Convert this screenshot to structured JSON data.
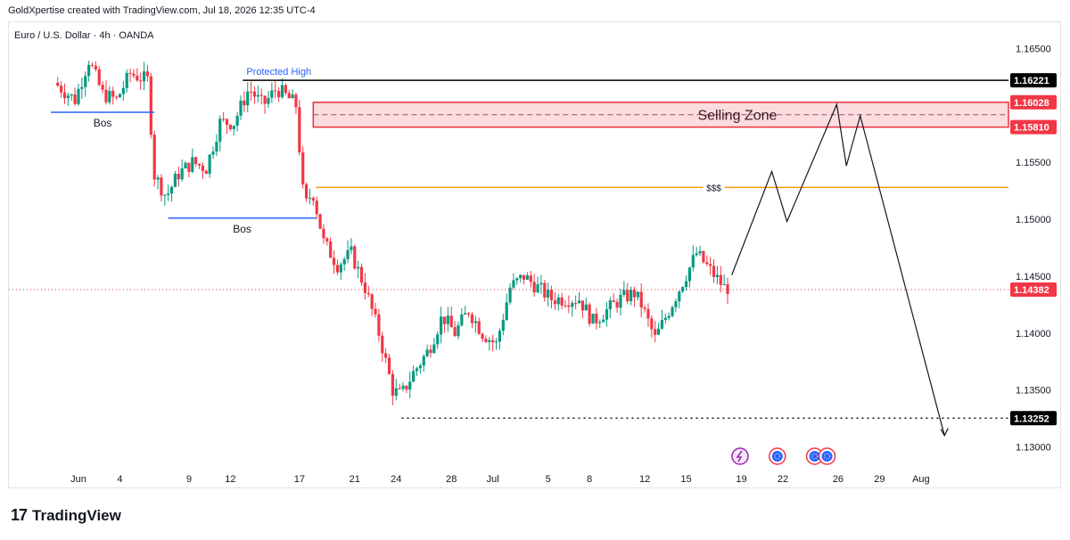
{
  "header": {
    "credit": "GoldXpertise created with TradingView.com, Jul 18, 2026 12:35 UTC-4"
  },
  "symbol_info": "Euro / U.S. Dollar · 4h · OANDA",
  "footer": {
    "logo_mark": "17",
    "logo_text": "TradingView"
  },
  "colors": {
    "up": "#089981",
    "down": "#f23645",
    "black_line": "#000000",
    "blue_line": "#2962ff",
    "orange_line": "#ff9800",
    "zone_fill": "#f9d0d4",
    "zone_border": "#e8323f",
    "current_price_line": "#f23645",
    "event_purple": "#9c27b0",
    "event_blue": "#2962ff"
  },
  "chart_data": {
    "type": "candlestick",
    "ylim": [
      1.128,
      1.167
    ],
    "y_ticks": [
      "1.16500",
      "1.15500",
      "1.15000",
      "1.14500",
      "1.14000",
      "1.13500",
      "1.13000"
    ],
    "x_ticks": [
      {
        "label": "Jun",
        "day": 1
      },
      {
        "label": "4",
        "day": 4
      },
      {
        "label": "9",
        "day": 9
      },
      {
        "label": "12",
        "day": 12
      },
      {
        "label": "17",
        "day": 17
      },
      {
        "label": "21",
        "day": 21
      },
      {
        "label": "24",
        "day": 24
      },
      {
        "label": "28",
        "day": 28
      },
      {
        "label": "Jul",
        "day": 31
      },
      {
        "label": "5",
        "day": 35
      },
      {
        "label": "8",
        "day": 38
      },
      {
        "label": "12",
        "day": 42
      },
      {
        "label": "15",
        "day": 45
      },
      {
        "label": "19",
        "day": 49
      },
      {
        "label": "22",
        "day": 52
      },
      {
        "label": "26",
        "day": 56
      },
      {
        "label": "29",
        "day": 59
      },
      {
        "label": "Aug",
        "day": 62
      }
    ],
    "price_labels": [
      {
        "text": "1.16221",
        "value": 1.16221,
        "style": "black"
      },
      {
        "text": "1.16028",
        "value": 1.16028,
        "style": "red"
      },
      {
        "text": "1.15810",
        "value": 1.1581,
        "style": "red"
      },
      {
        "text": "1.14382",
        "value": 1.14382,
        "style": "red"
      },
      {
        "text": "1.13252",
        "value": 1.13252,
        "style": "black"
      }
    ],
    "levels": [
      {
        "name": "Protected High",
        "value": 1.16221,
        "from_day": 12.9,
        "to_day": 999
      },
      {
        "name": "Bos",
        "value": 1.1594,
        "from_day": -1,
        "to_day": 6.5
      },
      {
        "name": "Bos",
        "value": 1.1501,
        "from_day": 7.5,
        "to_day": 18.2
      },
      {
        "name": "$$$",
        "value": 1.1528,
        "from_day": 18.2,
        "to_day": 999
      },
      {
        "name": "",
        "value": 1.13252,
        "from_day": 24.4,
        "to_day": 999
      }
    ],
    "selling_zone": {
      "label": "Selling Zone",
      "top": 1.16028,
      "bottom": 1.1581,
      "from_day": 18.0
    },
    "current_price": 1.14382,
    "projection": [
      {
        "day": 48.3,
        "price": 1.1451
      },
      {
        "day": 51.2,
        "price": 1.1542
      },
      {
        "day": 52.3,
        "price": 1.1498
      },
      {
        "day": 55.9,
        "price": 1.1601
      },
      {
        "day": 56.6,
        "price": 1.1547
      },
      {
        "day": 57.6,
        "price": 1.1591
      },
      {
        "day": 63.7,
        "price": 1.131
      }
    ],
    "price_path": [
      {
        "day": -0.5,
        "price": 1.162
      },
      {
        "day": 1.0,
        "price": 1.1605
      },
      {
        "day": 2.0,
        "price": 1.164
      },
      {
        "day": 3.0,
        "price": 1.161
      },
      {
        "day": 4.0,
        "price": 1.1605
      },
      {
        "day": 5.0,
        "price": 1.1628
      },
      {
        "day": 6.3,
        "price": 1.1622
      },
      {
        "day": 6.7,
        "price": 1.154
      },
      {
        "day": 7.6,
        "price": 1.152
      },
      {
        "day": 8.5,
        "price": 1.154
      },
      {
        "day": 9.5,
        "price": 1.155
      },
      {
        "day": 10.5,
        "price": 1.1545
      },
      {
        "day": 11.5,
        "price": 1.1585
      },
      {
        "day": 12.5,
        "price": 1.1585
      },
      {
        "day": 13.6,
        "price": 1.1615
      },
      {
        "day": 14.6,
        "price": 1.16
      },
      {
        "day": 15.6,
        "price": 1.1615
      },
      {
        "day": 16.6,
        "price": 1.1605
      },
      {
        "day": 17.0,
        "price": 1.16
      },
      {
        "day": 17.6,
        "price": 1.151
      },
      {
        "day": 18.2,
        "price": 1.1525
      },
      {
        "day": 19.0,
        "price": 1.148
      },
      {
        "day": 20.0,
        "price": 1.146
      },
      {
        "day": 21.0,
        "price": 1.147
      },
      {
        "day": 22.0,
        "price": 1.144
      },
      {
        "day": 23.0,
        "price": 1.14
      },
      {
        "day": 24.0,
        "price": 1.135
      },
      {
        "day": 24.6,
        "price": 1.1345
      },
      {
        "day": 25.5,
        "price": 1.1365
      },
      {
        "day": 26.6,
        "price": 1.1385
      },
      {
        "day": 27.6,
        "price": 1.1415
      },
      {
        "day": 28.5,
        "price": 1.14
      },
      {
        "day": 29.5,
        "price": 1.142
      },
      {
        "day": 30.5,
        "price": 1.14
      },
      {
        "day": 31.5,
        "price": 1.139
      },
      {
        "day": 32.5,
        "price": 1.144
      },
      {
        "day": 33.5,
        "price": 1.145
      },
      {
        "day": 34.5,
        "price": 1.144
      },
      {
        "day": 35.5,
        "price": 1.143
      },
      {
        "day": 36.5,
        "price": 1.143
      },
      {
        "day": 37.5,
        "price": 1.143
      },
      {
        "day": 38.5,
        "price": 1.141
      },
      {
        "day": 39.5,
        "price": 1.142
      },
      {
        "day": 40.5,
        "price": 1.143
      },
      {
        "day": 41.5,
        "price": 1.1435
      },
      {
        "day": 42.0,
        "price": 1.1425
      },
      {
        "day": 43.0,
        "price": 1.1395
      },
      {
        "day": 44.0,
        "price": 1.142
      },
      {
        "day": 45.0,
        "price": 1.1445
      },
      {
        "day": 46.0,
        "price": 1.147
      },
      {
        "day": 47.0,
        "price": 1.1455
      },
      {
        "day": 48.0,
        "price": 1.144
      }
    ],
    "events": [
      {
        "icon": "lightning-icon",
        "day": 48.9,
        "color": "#9c27b0"
      },
      {
        "icon": "flag-icon",
        "day": 51.6,
        "color": "#2962ff"
      },
      {
        "icon": "flag-icon",
        "day": 54.3,
        "color": "#2962ff"
      },
      {
        "icon": "flag-icon",
        "day": 55.2,
        "color": "#2962ff"
      }
    ]
  }
}
